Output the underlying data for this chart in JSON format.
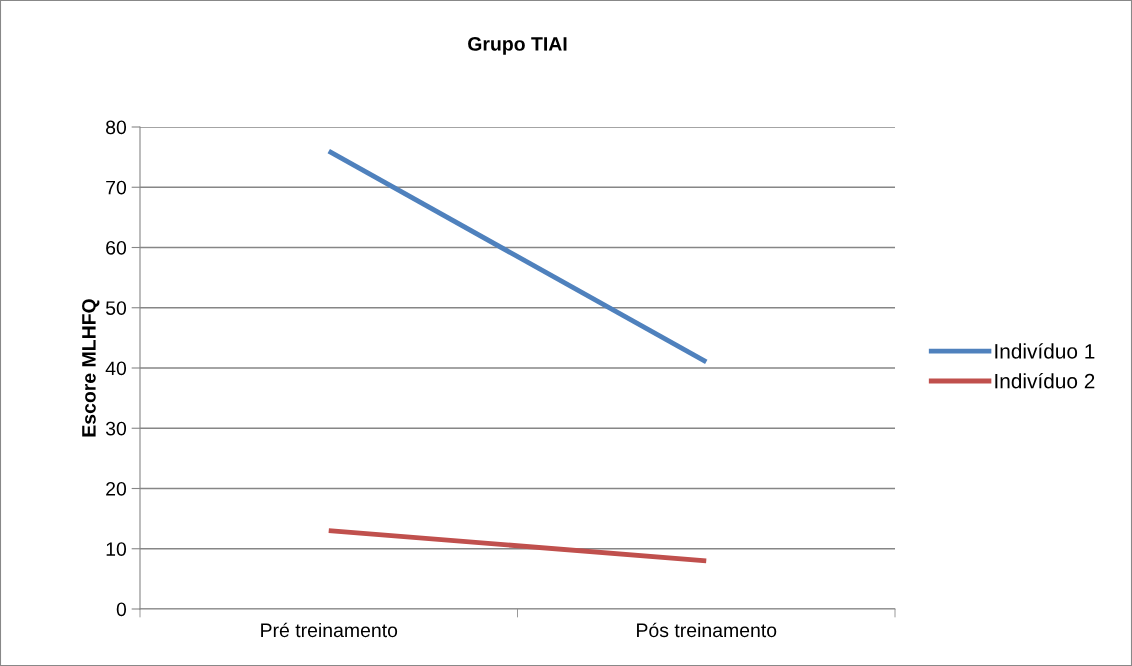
{
  "chart_data": {
    "type": "line",
    "title": "Grupo TIAI",
    "ylabel": "Escore MLHFQ",
    "categories": [
      "Pré treinamento",
      "Pós treinamento"
    ],
    "series": [
      {
        "name": "Indivíduo 1",
        "color": "#4f81bd",
        "values": [
          76,
          41
        ]
      },
      {
        "name": "Indivíduo 2",
        "color": "#c0504d",
        "values": [
          13,
          8
        ]
      }
    ],
    "ylim": [
      0,
      80
    ],
    "yticks": [
      0,
      10,
      20,
      30,
      40,
      50,
      60,
      70,
      80
    ],
    "grid": "y",
    "legend": "right",
    "marker": "none",
    "line_style": "solid"
  }
}
